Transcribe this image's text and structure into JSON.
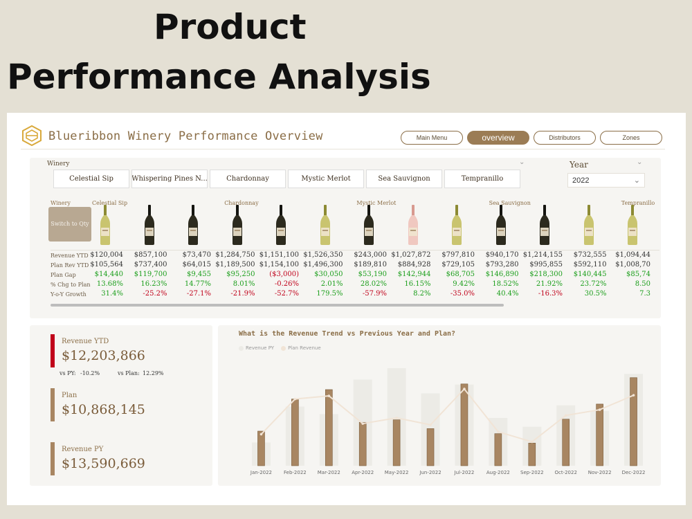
{
  "hero": {
    "line1": "Product",
    "line2": "Performance Analysis"
  },
  "header": {
    "title": "Blueribbon Winery Performance Overview",
    "nav": [
      {
        "label": "Main Menu",
        "active": false
      },
      {
        "label": "overview",
        "active": true
      },
      {
        "label": "Distributors",
        "active": false
      },
      {
        "label": "Zones",
        "active": false
      }
    ]
  },
  "filters": {
    "winery_label": "Winery",
    "winery_tabs": [
      "Celestial Sip",
      "Whispering Pines N...",
      "Chardonnay",
      "Mystic Merlot",
      "Sea Sauvignon",
      "Tempranillo"
    ],
    "year_label": "Year",
    "year_value": "2022"
  },
  "table": {
    "corner_label": "Winery",
    "switch_button": "Switch to Qty",
    "column_headers": [
      {
        "col": 0,
        "label": "Celestial Sip"
      },
      {
        "col": 4,
        "label": "Chardonnay"
      },
      {
        "col": 8,
        "label": "Mystic Merlot"
      },
      {
        "col": 12,
        "label": "Sea Sauvignon"
      },
      {
        "col": 16,
        "label": "Tempranillo"
      }
    ],
    "bottles": [
      "white",
      "red",
      "red",
      "red",
      "red",
      "white",
      "red",
      "rose",
      "white",
      "red",
      "red",
      "white",
      "white"
    ],
    "rows": [
      {
        "label": "Revenue YTD",
        "tone": "dark",
        "values": [
          "$120,004",
          "$857,100",
          "$73,470",
          "$1,284,750",
          "$1,151,100",
          "$1,526,350",
          "$243,000",
          "$1,027,872",
          "$797,810",
          "$940,170",
          "$1,214,155",
          "$732,555",
          "$1,094,44"
        ]
      },
      {
        "label": "Plan Rev YTD",
        "tone": "dark",
        "values": [
          "$105,564",
          "$737,400",
          "$64,015",
          "$1,189,500",
          "$1,154,100",
          "$1,496,300",
          "$189,810",
          "$884,928",
          "$729,105",
          "$793,280",
          "$995,855",
          "$592,110",
          "$1,008,70"
        ]
      },
      {
        "label": "Plan Gap",
        "tone": "mixed",
        "values": [
          "$14,440",
          "$119,700",
          "$9,455",
          "$95,250",
          "($3,000)",
          "$30,050",
          "$53,190",
          "$142,944",
          "$68,705",
          "$146,890",
          "$218,300",
          "$140,445",
          "$85,74"
        ]
      },
      {
        "label": "% Chg to Plan",
        "tone": "mixed",
        "values": [
          "13.68%",
          "16.23%",
          "14.77%",
          "8.01%",
          "-0.26%",
          "2.01%",
          "28.02%",
          "16.15%",
          "9.42%",
          "18.52%",
          "21.92%",
          "23.72%",
          "8.50"
        ]
      },
      {
        "label": "Y-o-Y Growth",
        "tone": "mixed",
        "values": [
          "31.4%",
          "-25.2%",
          "-27.1%",
          "-21.9%",
          "-52.7%",
          "179.5%",
          "-57.9%",
          "8.2%",
          "-35.0%",
          "40.4%",
          "-16.3%",
          "30.5%",
          "7.3"
        ]
      }
    ]
  },
  "kpis": {
    "revenue_ytd": {
      "label": "Revenue YTD",
      "value": "$12,203,866",
      "vs_py_label": "vs PY:",
      "vs_py": "-10.2%",
      "vs_plan_label": "vs Plan:",
      "vs_plan": "12.29%"
    },
    "plan": {
      "label": "Plan",
      "value": "$10,868,145"
    },
    "revenue_py": {
      "label": "Revenue PY",
      "value": "$13,590,669"
    }
  },
  "colors": {
    "accent": "#9b7c55",
    "bar_ytd": "#a88662",
    "bar_py": "#ecebe6",
    "line_plan": "#f1e4d6",
    "red": "#c0001a",
    "green": "#1b9e1b"
  },
  "chart_data": {
    "type": "bar",
    "title": "What is the Revenue Trend vs Previous Year and Plan?",
    "categories": [
      "Jan-2022",
      "Feb-2022",
      "Mar-2022",
      "Apr-2022",
      "May-2022",
      "Jun-2022",
      "Jul-2022",
      "Aug-2022",
      "Sep-2022",
      "Oct-2022",
      "Nov-2022",
      "Dec-2022"
    ],
    "series": [
      {
        "name": "",
        "kind": "bar",
        "values": [
          550,
          1060,
          1210,
          690,
          730,
          590,
          1300,
          510,
          360,
          740,
          980,
          1400
        ]
      },
      {
        "name": "Revenue PY",
        "kind": "bar",
        "values": [
          370,
          940,
          820,
          1370,
          1550,
          1150,
          1290,
          760,
          620,
          960,
          870,
          1460
        ]
      },
      {
        "name": "Plan Revenue",
        "kind": "line",
        "values": [
          500,
          1060,
          1110,
          670,
          760,
          650,
          1220,
          540,
          380,
          800,
          890,
          1120
        ]
      }
    ],
    "ylim": [
      0,
      1650
    ],
    "legend": "top-left",
    "grid": false
  }
}
